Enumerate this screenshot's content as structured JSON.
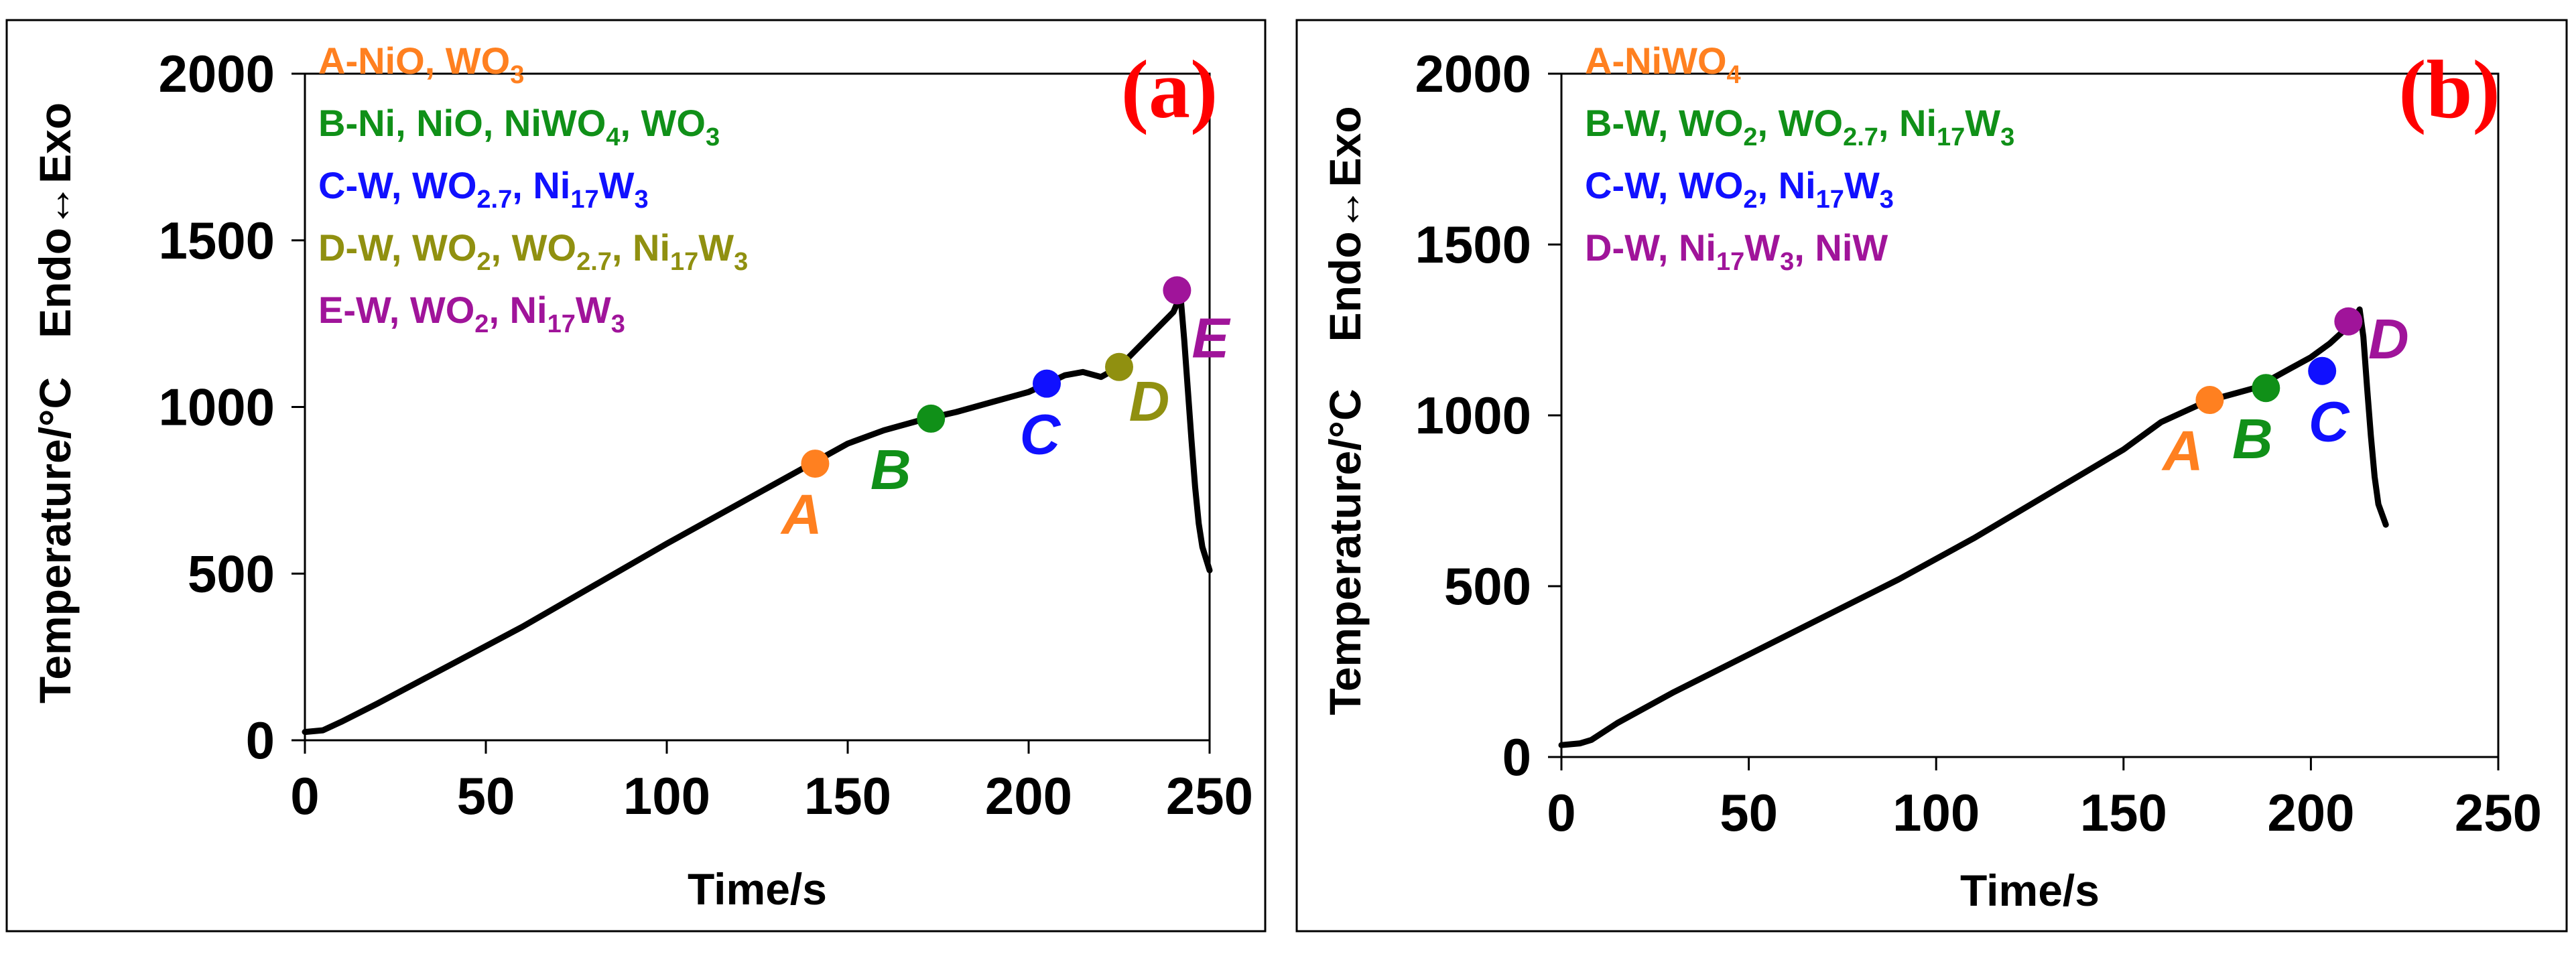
{
  "colors": {
    "A": "#ff8020",
    "B": "#109018",
    "C": "#1010ff",
    "D": "#909010",
    "E": "#a0149a",
    "panel_label": "#ff0000",
    "curve": "#000000"
  },
  "chart_data": [
    {
      "type": "line",
      "panel_label": "(a)",
      "xlabel": "Time/s",
      "ylabel": "Temperature/°C",
      "ylabel_top": "Endo↔Exo",
      "xlim": [
        0,
        250
      ],
      "ylim": [
        0,
        2000
      ],
      "xticks": [
        "0",
        "50",
        "100",
        "150",
        "200",
        "250"
      ],
      "yticks": [
        "0",
        "500",
        "1000",
        "1500",
        "2000"
      ],
      "xtick_values": [
        0,
        50,
        100,
        150,
        200,
        250
      ],
      "ytick_values": [
        0,
        500,
        1000,
        1500,
        2000
      ],
      "series": [
        {
          "name": "temperature",
          "x": [
            0,
            5,
            10,
            20,
            40,
            60,
            80,
            100,
            120,
            140,
            150,
            160,
            170,
            180,
            190,
            200,
            205,
            210,
            215,
            220,
            225,
            230,
            235,
            240,
            241,
            242,
            243,
            244,
            245,
            246,
            247,
            248,
            250
          ],
          "y": [
            25,
            30,
            55,
            110,
            225,
            340,
            465,
            590,
            710,
            830,
            890,
            930,
            960,
            985,
            1015,
            1045,
            1070,
            1095,
            1105,
            1090,
            1120,
            1175,
            1230,
            1285,
            1310,
            1330,
            1200,
            1050,
            900,
            760,
            650,
            580,
            510
          ]
        }
      ],
      "points": [
        {
          "label": "A",
          "x": 141,
          "y": 830,
          "color_key": "A"
        },
        {
          "label": "B",
          "x": 173,
          "y": 965,
          "color_key": "B"
        },
        {
          "label": "C",
          "x": 205,
          "y": 1070,
          "color_key": "C"
        },
        {
          "label": "D",
          "x": 225,
          "y": 1120,
          "color_key": "D"
        },
        {
          "label": "E",
          "x": 241,
          "y": 1350,
          "color_key": "E"
        }
      ],
      "legend": [
        {
          "key": "A",
          "parts": [
            [
              "A-NiO, WO",
              ""
            ],
            [
              "3",
              "sub"
            ]
          ]
        },
        {
          "key": "B",
          "parts": [
            [
              "B-Ni, NiO, NiWO",
              ""
            ],
            [
              "4",
              "sub"
            ],
            [
              ", WO",
              ""
            ],
            [
              "3",
              "sub"
            ]
          ]
        },
        {
          "key": "C",
          "parts": [
            [
              "C-W, WO",
              ""
            ],
            [
              "2.7",
              "sub"
            ],
            [
              ", Ni",
              ""
            ],
            [
              "17",
              "sub"
            ],
            [
              "W",
              ""
            ],
            [
              "3",
              "sub"
            ]
          ]
        },
        {
          "key": "D",
          "parts": [
            [
              "D-W, WO",
              ""
            ],
            [
              "2",
              "sub"
            ],
            [
              ", WO",
              ""
            ],
            [
              "2.7",
              "sub"
            ],
            [
              ", Ni",
              ""
            ],
            [
              "17",
              "sub"
            ],
            [
              "W",
              ""
            ],
            [
              "3",
              "sub"
            ]
          ]
        },
        {
          "key": "E",
          "parts": [
            [
              "E-W, WO",
              ""
            ],
            [
              "2",
              "sub"
            ],
            [
              ", Ni",
              ""
            ],
            [
              "17",
              "sub"
            ],
            [
              "W",
              ""
            ],
            [
              "3",
              "sub"
            ]
          ]
        }
      ]
    },
    {
      "type": "line",
      "panel_label": "(b)",
      "xlabel": "Time/s",
      "ylabel": "Temperature/°C",
      "ylabel_top": "Endo↔Exo",
      "xlim": [
        0,
        250
      ],
      "ylim": [
        0,
        2000
      ],
      "xticks": [
        "0",
        "50",
        "100",
        "150",
        "200",
        "250"
      ],
      "yticks": [
        "0",
        "500",
        "1000",
        "1500",
        "2000"
      ],
      "xtick_values": [
        0,
        50,
        100,
        150,
        200,
        250
      ],
      "ytick_values": [
        0,
        500,
        1000,
        1500,
        2000
      ],
      "series": [
        {
          "name": "temperature",
          "x": [
            0,
            5,
            8,
            15,
            30,
            50,
            70,
            90,
            110,
            130,
            150,
            160,
            170,
            175,
            180,
            185,
            190,
            195,
            200,
            205,
            210,
            212,
            213,
            214,
            215,
            216,
            217,
            218,
            220
          ],
          "y": [
            35,
            40,
            50,
            100,
            190,
            300,
            410,
            520,
            640,
            770,
            900,
            980,
            1030,
            1050,
            1065,
            1080,
            1110,
            1140,
            1170,
            1210,
            1260,
            1290,
            1310,
            1230,
            1080,
            940,
            820,
            740,
            680
          ]
        }
      ],
      "points": [
        {
          "label": "A",
          "x": 173,
          "y": 1045,
          "color_key": "A"
        },
        {
          "label": "B",
          "x": 188,
          "y": 1080,
          "color_key": "B"
        },
        {
          "label": "C",
          "x": 203,
          "y": 1130,
          "color_key": "C"
        },
        {
          "label": "D",
          "x": 210,
          "y": 1275,
          "color_key": "E"
        }
      ],
      "legend": [
        {
          "key": "A",
          "parts": [
            [
              "A-NiWO",
              ""
            ],
            [
              "4",
              "sub"
            ]
          ]
        },
        {
          "key": "B",
          "parts": [
            [
              "B-W, WO",
              ""
            ],
            [
              "2",
              "sub"
            ],
            [
              ", WO",
              ""
            ],
            [
              "2.7",
              "sub"
            ],
            [
              ", Ni",
              ""
            ],
            [
              "17",
              "sub"
            ],
            [
              "W",
              ""
            ],
            [
              "3",
              "sub"
            ]
          ]
        },
        {
          "key": "C",
          "parts": [
            [
              "C-W, WO",
              ""
            ],
            [
              "2",
              "sub"
            ],
            [
              ", Ni",
              ""
            ],
            [
              "17",
              "sub"
            ],
            [
              "W",
              ""
            ],
            [
              "3",
              "sub"
            ]
          ]
        },
        {
          "key": "E",
          "parts": [
            [
              "D-W, Ni",
              ""
            ],
            [
              "17",
              "sub"
            ],
            [
              "W",
              ""
            ],
            [
              "3",
              "sub"
            ],
            [
              ", NiW",
              ""
            ]
          ]
        }
      ]
    }
  ]
}
